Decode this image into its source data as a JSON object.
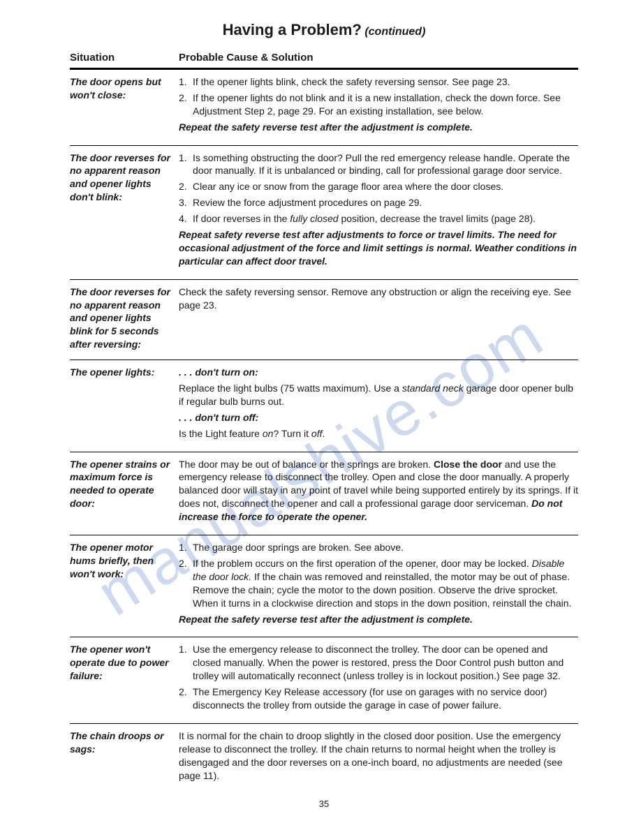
{
  "page": {
    "title_main": "Having a Problem?",
    "title_cont": "(continued)",
    "col_situation": "Situation",
    "col_solution": "Probable Cause & Solution",
    "page_number": "35",
    "watermark": "manualshive.com"
  },
  "items": [
    {
      "situation": "The door opens but won't close:",
      "lines": [
        {
          "num": "1.",
          "text": "If the opener lights blink, check the safety reversing sensor. See page 23."
        },
        {
          "num": "2.",
          "text": "If the opener lights do not blink and it is a new installation, check the down force. See Adjustment Step 2, page 29. For an existing installation, see below."
        }
      ],
      "note_emph": "Repeat the safety reverse test after the adjustment is complete."
    },
    {
      "situation": "The door reverses for no apparent reason and opener lights don't blink:",
      "lines": [
        {
          "num": "1.",
          "text": "Is something obstructing the door? Pull the red emergency release handle. Operate the door manually. If it is unbalanced or binding, call for professional garage door service."
        },
        {
          "num": "2.",
          "text": "Clear any ice or snow from the garage floor area where the door closes."
        },
        {
          "num": "3.",
          "text": "Review the force adjustment procedures on page 29."
        },
        {
          "num": "4.",
          "text_html": "If door reverses in the <i>fully closed</i> position, decrease the travel limits (page 28)."
        }
      ],
      "note_emph": "Repeat safety reverse test after adjustments to force or travel limits. The need for occasional adjustment of the force and limit settings is normal. Weather conditions in particular can affect door travel."
    },
    {
      "situation": "The door reverses for no apparent reason and opener lights blink for 5 seconds after reversing:",
      "body_plain": "Check the safety reversing sensor. Remove any obstruction or align the receiving eye. See page 23."
    },
    {
      "situation": "The opener lights:",
      "sub": [
        {
          "head_emph": ". . . don't turn on:",
          "text_html": "Replace the light bulbs (75 watts maximum). Use a <i>standard neck</i> garage door opener bulb if regular bulb burns out."
        },
        {
          "head_emph": ". . . don't turn off:",
          "text_html": "Is the Light feature <i>on</i>? Turn it <i>off</i>."
        }
      ]
    },
    {
      "situation": "The opener strains or maximum force is needed to operate door:",
      "body_html": "The door may be out of balance or the springs are broken. <b>Close the door</b> and use the emergency release to disconnect the trolley. Open and close the door manually. A properly balanced door will stay in any point of travel while being supported entirely by its springs. If it does not, disconnect the opener and call a professional garage door serviceman. <b><i>Do not increase the force to operate the opener.</i></b>"
    },
    {
      "situation": "The opener motor hums briefly, then won't work:",
      "lines": [
        {
          "num": "1.",
          "text": "The garage door springs are broken. See above."
        },
        {
          "num": "2.",
          "text_html": "If the problem occurs on the first operation of the opener, door may be locked. <i>Disable the door lock.</i> If the chain was removed and reinstalled, the motor may be out of phase. Remove the chain; cycle the motor to the down position. Observe the drive sprocket. When it turns in a clockwise direction and stops in the down position, reinstall the chain."
        }
      ],
      "note_emph": "Repeat the safety reverse test after the adjustment is complete."
    },
    {
      "situation": "The opener won't operate due to power failure:",
      "lines": [
        {
          "num": "1.",
          "text": "Use the emergency release to disconnect the trolley. The door can be opened and closed manually. When the power is restored, press the Door Control push button and trolley will automatically reconnect (unless trolley is in lockout position.) See page 32."
        },
        {
          "num": "2.",
          "text": "The Emergency Key Release accessory (for use on garages with no service door) disconnects the trolley from outside the garage in case of power failure."
        }
      ]
    },
    {
      "situation": "The chain droops or sags:",
      "body_plain": "It is normal for the chain to droop slightly in the closed door position. Use the emergency release to disconnect the trolley. If the chain returns to normal height when the trolley is disengaged and the door reverses on a one-inch board, no adjustments are needed (see page 11)."
    }
  ]
}
